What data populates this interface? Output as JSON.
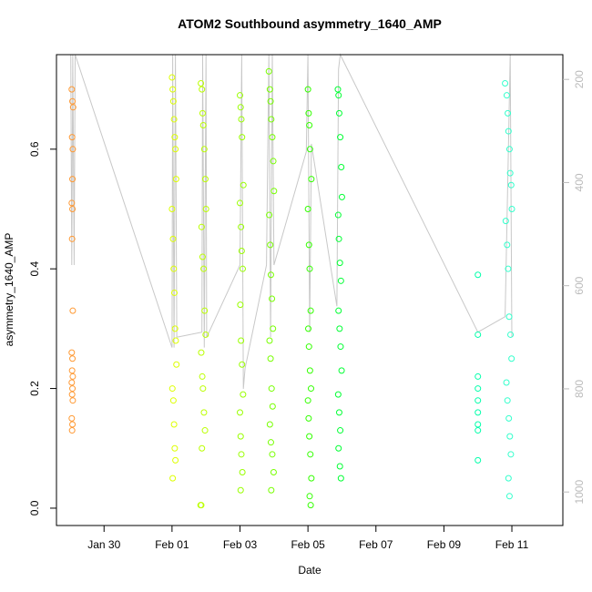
{
  "chart_data": {
    "type": "scatter",
    "title": "ATOM2 Southbound asymmetry_1640_AMP",
    "x_label": "Date",
    "y_label": "asymmetry_1640_AMP",
    "xlim": [
      28.6,
      43.5
    ],
    "xticks": [
      {
        "value": 30,
        "label": "Jan 30"
      },
      {
        "value": 32,
        "label": "Feb 01"
      },
      {
        "value": 34,
        "label": "Feb 03"
      },
      {
        "value": 36,
        "label": "Feb 05"
      },
      {
        "value": 38,
        "label": "Feb 07"
      },
      {
        "value": 40,
        "label": "Feb 09"
      },
      {
        "value": 42,
        "label": "Feb 11"
      }
    ],
    "ylim": [
      -0.029,
      0.758
    ],
    "yticks": [
      {
        "value": 0,
        "label": "0.0"
      },
      0.2,
      0.4,
      0.6
    ],
    "y2lim": [
      1065,
      152
    ],
    "y2ticks": [
      200,
      400,
      600,
      800,
      1000
    ],
    "series": [
      {
        "color": "#FF9933",
        "x": [
          29.05,
          29.07,
          29.09,
          29.06,
          29.08,
          29.07,
          29.05,
          29.07,
          29.06,
          29.08,
          29.05,
          29.07,
          29.06,
          29.08,
          29.05,
          29.07,
          29.06,
          29.08,
          29.05,
          29.07,
          29.06
        ],
        "values": [
          0.7,
          0.68,
          0.67,
          0.62,
          0.6,
          0.55,
          0.51,
          0.5,
          0.45,
          0.33,
          0.26,
          0.25,
          0.23,
          0.22,
          0.21,
          0.2,
          0.19,
          0.18,
          0.15,
          0.14,
          0.13
        ]
      },
      {
        "color": "#DDFF00",
        "x": [
          32.0,
          32.02,
          32.04,
          32.06,
          32.08,
          32.1,
          32.12,
          32.0,
          32.03,
          32.05,
          32.07,
          32.09,
          32.11,
          32.13,
          32.01,
          32.04,
          32.06,
          32.08,
          32.1,
          32.02
        ],
        "values": [
          0.72,
          0.7,
          0.68,
          0.65,
          0.62,
          0.6,
          0.55,
          0.5,
          0.45,
          0.4,
          0.36,
          0.3,
          0.28,
          0.24,
          0.2,
          0.18,
          0.14,
          0.1,
          0.08,
          0.05
        ]
      },
      {
        "color": "#BBFF00",
        "x": [
          32.85,
          32.88,
          32.9,
          32.92,
          32.95,
          32.98,
          33.0,
          32.87,
          32.9,
          32.93,
          32.96,
          32.99,
          32.86,
          32.89,
          32.91,
          32.94,
          32.97,
          32.88,
          32.84,
          32.86
        ],
        "values": [
          0.71,
          0.7,
          0.66,
          0.64,
          0.6,
          0.55,
          0.5,
          0.47,
          0.42,
          0.4,
          0.33,
          0.29,
          0.26,
          0.22,
          0.2,
          0.16,
          0.13,
          0.1,
          0.005,
          0.005
        ]
      },
      {
        "color": "#99FF00",
        "x": [
          34.0,
          34.02,
          34.04,
          34.06,
          34.1,
          34.0,
          34.03,
          34.05,
          34.08,
          34.01,
          34.03,
          34.06,
          34.09,
          34.0,
          34.02,
          34.04,
          34.07,
          34.02
        ],
        "values": [
          0.69,
          0.67,
          0.65,
          0.62,
          0.54,
          0.51,
          0.47,
          0.43,
          0.4,
          0.34,
          0.28,
          0.24,
          0.19,
          0.16,
          0.12,
          0.09,
          0.06,
          0.03
        ]
      },
      {
        "color": "#77FF00",
        "x": [
          34.85,
          34.88,
          34.9,
          34.92,
          34.95,
          34.98,
          35.0,
          34.86,
          34.89,
          34.91,
          34.94,
          34.97,
          34.87,
          34.9,
          34.93,
          34.96,
          34.88,
          34.91,
          34.95,
          34.99,
          34.92
        ],
        "values": [
          0.73,
          0.7,
          0.68,
          0.65,
          0.62,
          0.58,
          0.53,
          0.49,
          0.44,
          0.39,
          0.35,
          0.3,
          0.28,
          0.25,
          0.2,
          0.17,
          0.14,
          0.11,
          0.09,
          0.06,
          0.03
        ]
      },
      {
        "color": "#33FF00",
        "x": [
          36.0,
          36.02,
          36.04,
          36.06,
          36.1,
          36.0,
          36.03,
          36.05,
          36.08,
          36.01,
          36.03,
          36.06,
          36.09,
          36.0,
          36.02,
          36.04,
          36.07,
          36.1,
          36.05,
          36.08
        ],
        "values": [
          0.7,
          0.66,
          0.64,
          0.6,
          0.55,
          0.5,
          0.44,
          0.4,
          0.33,
          0.3,
          0.27,
          0.23,
          0.2,
          0.18,
          0.15,
          0.12,
          0.09,
          0.05,
          0.02,
          0.005
        ]
      },
      {
        "color": "#00FF33",
        "x": [
          36.88,
          36.9,
          36.92,
          36.95,
          36.98,
          37.0,
          36.89,
          36.91,
          36.94,
          36.97,
          36.9,
          36.93,
          36.96,
          36.99,
          36.89,
          36.92,
          36.95,
          36.9,
          36.94,
          36.97
        ],
        "values": [
          0.7,
          0.69,
          0.66,
          0.62,
          0.57,
          0.52,
          0.49,
          0.45,
          0.41,
          0.38,
          0.33,
          0.3,
          0.27,
          0.23,
          0.19,
          0.16,
          0.13,
          0.1,
          0.07,
          0.05
        ]
      },
      {
        "color": "#00FFAA",
        "x": [
          41.0,
          41.0,
          41.0,
          41.0,
          41.0,
          41.0,
          41.0,
          41.0,
          41.0
        ],
        "values": [
          0.39,
          0.29,
          0.22,
          0.2,
          0.18,
          0.16,
          0.14,
          0.13,
          0.08
        ]
      },
      {
        "color": "#33FFCC",
        "x": [
          41.8,
          41.85,
          41.88,
          41.9,
          41.93,
          41.95,
          41.98,
          42.0,
          41.82,
          41.86,
          41.89,
          41.92,
          41.96,
          41.99,
          41.84,
          41.87,
          41.91,
          41.94,
          41.97,
          41.9,
          41.93
        ],
        "values": [
          0.71,
          0.69,
          0.66,
          0.63,
          0.6,
          0.56,
          0.54,
          0.5,
          0.48,
          0.44,
          0.4,
          0.32,
          0.29,
          0.25,
          0.21,
          0.18,
          0.15,
          0.12,
          0.09,
          0.05,
          0.02
        ]
      },
      {
        "type": "line",
        "axis": "y2",
        "color": "#c8c8c8",
        "x": [
          29.02,
          29.05,
          29.08,
          29.12,
          29.15,
          32.0,
          32.02,
          32.06,
          32.1,
          32.14,
          32.88,
          32.9,
          32.95,
          33.0,
          33.02,
          34.0,
          34.05,
          34.1,
          34.15,
          34.78,
          34.85,
          34.9,
          34.95,
          35.0,
          35.95,
          36.0,
          36.05,
          36.1,
          36.85,
          36.9,
          36.95,
          41.0,
          41.8,
          41.9,
          41.95,
          42.0
        ],
        "values": [
          152,
          560,
          152,
          560,
          152,
          720,
          152,
          720,
          152,
          700,
          690,
          152,
          720,
          152,
          700,
          560,
          152,
          800,
          760,
          560,
          152,
          700,
          152,
          560,
          340,
          152,
          690,
          325,
          640,
          180,
          152,
          690,
          660,
          328,
          152,
          700
        ]
      }
    ]
  }
}
